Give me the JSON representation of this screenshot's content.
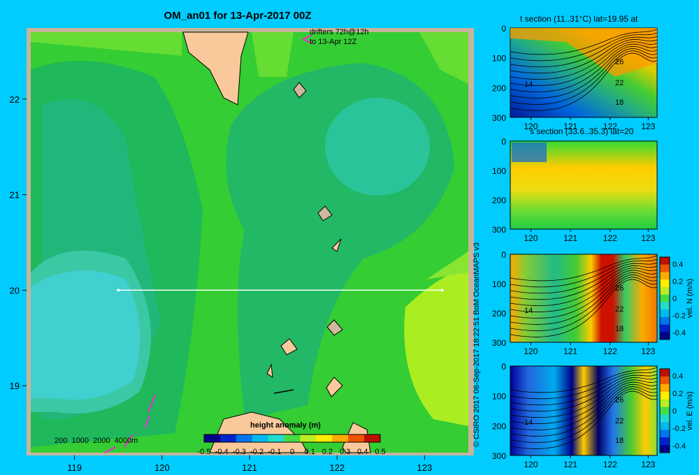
{
  "main_map": {
    "title": "OM_an01 for 13-Apr-2017 00Z",
    "drifters_label_1": "drifters 72h@12h",
    "drifters_label_2": "to 13-Apr 12Z",
    "depth_scale": [
      "200",
      "1000",
      "2000",
      "4000m"
    ],
    "lon_ticks": [
      119,
      120,
      121,
      122,
      123
    ],
    "lat_ticks": [
      19,
      20,
      21,
      22
    ],
    "lon_range": [
      118.5,
      123.5
    ],
    "lat_range": [
      18.3,
      22.7
    ],
    "section_line": {
      "lat": 20,
      "lon_start": 119.5,
      "lon_end": 123.2
    },
    "colorbar": {
      "title": "height anomaly (m)",
      "tick_labels": [
        "-0.5",
        "-0.4",
        "-0.3",
        "-0.2",
        "-0.1",
        "0",
        "0.1",
        "0.2",
        "0.3",
        "0.4",
        "0.5"
      ],
      "range": [
        -0.5,
        0.5
      ]
    },
    "colors": {
      "land": "#f9c99b",
      "ocean_green": "#33cc33",
      "shallow": "#cfb89d"
    }
  },
  "credit": "© CSIRO 2017   06-Sep-2017 18:22:51 BoM OceanMAPS v3",
  "sections": [
    {
      "id": "t",
      "title": "t section (11..31°C) lat=19.95 at",
      "x_ticks": [
        "120",
        "121",
        "122",
        "123"
      ],
      "y_ticks": [
        "0",
        "100",
        "200",
        "300"
      ],
      "contour_labels": [
        "14",
        "26",
        "22",
        "18"
      ],
      "colorbar": null
    },
    {
      "id": "s",
      "title": "s section (33.6..35.3) lat=20",
      "x_ticks": [
        "120",
        "121",
        "122",
        "123"
      ],
      "y_ticks": [
        "0",
        "100",
        "200",
        "300"
      ],
      "contour_labels": [],
      "colorbar": null
    },
    {
      "id": "vn",
      "title": "",
      "x_ticks": [
        "120",
        "121",
        "122",
        "123"
      ],
      "y_ticks": [
        "0",
        "100",
        "200",
        "300"
      ],
      "contour_labels": [
        "14",
        "26",
        "22",
        "18"
      ],
      "colorbar": {
        "label": "vel. N (m/s)",
        "ticks": [
          "0.4",
          "0.2",
          "0",
          "-0.2",
          "-0.4"
        ]
      }
    },
    {
      "id": "ve",
      "title": "",
      "x_ticks": [
        "120",
        "121",
        "122",
        "123"
      ],
      "y_ticks": [
        "0",
        "100",
        "200",
        "300"
      ],
      "contour_labels": [
        "14",
        "26",
        "22",
        "18"
      ],
      "colorbar": {
        "label": "vel. E (m/s)",
        "ticks": [
          "0.4",
          "0.2",
          "0",
          "-0.2",
          "-0.4"
        ]
      }
    }
  ]
}
